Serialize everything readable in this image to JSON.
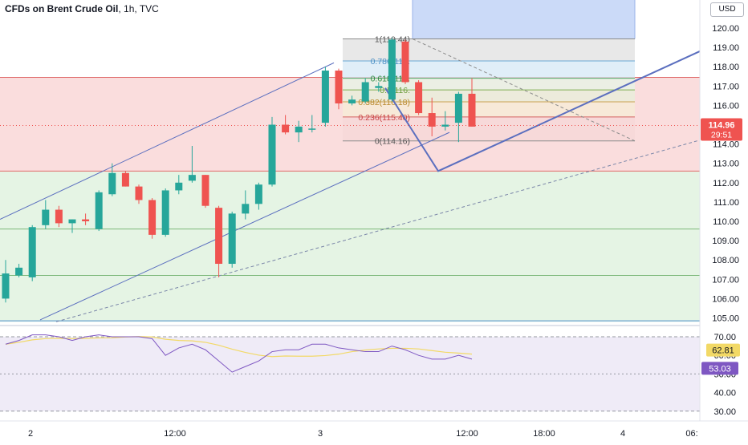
{
  "title": {
    "symbol": "CFDs on Brent Crude Oil",
    "interval": "1h",
    "source": "TVC"
  },
  "currency_button": "USD",
  "price_badge": {
    "price": "114.96",
    "countdown": "29:51"
  },
  "rsi_badges": {
    "ma": "62.81",
    "rsi": "53.03"
  },
  "colors": {
    "up": "#26a69a",
    "down": "#ef5350",
    "fib_line": "#9598a1",
    "trend": "#5b6fbf",
    "rsi": "#7e57c2",
    "rsi_ma": "#f2d966"
  },
  "price_axis_ticks": [
    "120.00",
    "119.00",
    "118.00",
    "117.00",
    "116.00",
    "115.00",
    "114.00",
    "113.00",
    "112.00",
    "111.00",
    "110.00",
    "109.00",
    "108.00",
    "107.00",
    "106.00",
    "105.00"
  ],
  "rsi_axis_ticks": [
    "70.00",
    "60.00",
    "50.00",
    "40.00",
    "30.00"
  ],
  "time_axis_ticks": [
    "2",
    "12:00",
    "3",
    "12:00",
    "18:00",
    "4",
    "06:"
  ],
  "fib_levels": [
    {
      "label": "1(119.44)",
      "value": 119.44
    },
    {
      "label": "0.786(118.",
      "value": 118.3
    },
    {
      "label": "0.618(117.",
      "value": 117.4
    },
    {
      "label": "0.5(116.",
      "value": 116.8
    },
    {
      "label": "0.382(116.18)",
      "value": 116.18
    },
    {
      "label": "0.236(115.40)",
      "value": 115.4
    },
    {
      "label": "0(114.16)",
      "value": 114.16
    }
  ],
  "chart_data": {
    "type": "candlestick",
    "title": "CFDs on Brent Crude Oil, 1h, TVC",
    "ylim": [
      104.5,
      121
    ],
    "y_axis_side": "right",
    "candles": [
      {
        "o": 106.0,
        "h": 108.0,
        "l": 105.8,
        "c": 107.3
      },
      {
        "o": 107.2,
        "h": 107.8,
        "l": 107.1,
        "c": 107.6
      },
      {
        "o": 107.1,
        "h": 109.8,
        "l": 106.9,
        "c": 109.7
      },
      {
        "o": 109.8,
        "h": 111.1,
        "l": 109.6,
        "c": 110.6
      },
      {
        "o": 110.6,
        "h": 110.8,
        "l": 109.7,
        "c": 109.9
      },
      {
        "o": 109.9,
        "h": 110.1,
        "l": 109.4,
        "c": 110.1
      },
      {
        "o": 110.1,
        "h": 110.4,
        "l": 109.8,
        "c": 110.0
      },
      {
        "o": 109.6,
        "h": 111.6,
        "l": 109.5,
        "c": 111.5
      },
      {
        "o": 111.4,
        "h": 113.0,
        "l": 111.3,
        "c": 112.5
      },
      {
        "o": 112.5,
        "h": 112.6,
        "l": 111.8,
        "c": 111.8
      },
      {
        "o": 111.8,
        "h": 111.9,
        "l": 110.9,
        "c": 111.1
      },
      {
        "o": 111.1,
        "h": 111.2,
        "l": 109.1,
        "c": 109.3
      },
      {
        "o": 109.3,
        "h": 111.7,
        "l": 109.2,
        "c": 111.6
      },
      {
        "o": 111.6,
        "h": 112.4,
        "l": 111.4,
        "c": 112.0
      },
      {
        "o": 112.1,
        "h": 113.9,
        "l": 112.0,
        "c": 112.4
      },
      {
        "o": 112.4,
        "h": 112.4,
        "l": 110.7,
        "c": 110.8
      },
      {
        "o": 110.7,
        "h": 110.8,
        "l": 107.1,
        "c": 107.8
      },
      {
        "o": 107.8,
        "h": 110.5,
        "l": 107.6,
        "c": 110.4
      },
      {
        "o": 110.4,
        "h": 111.6,
        "l": 110.1,
        "c": 110.9
      },
      {
        "o": 110.9,
        "h": 112.0,
        "l": 110.6,
        "c": 111.9
      },
      {
        "o": 111.9,
        "h": 115.4,
        "l": 111.8,
        "c": 115.0
      },
      {
        "o": 115.0,
        "h": 115.5,
        "l": 114.5,
        "c": 114.6
      },
      {
        "o": 114.6,
        "h": 115.2,
        "l": 114.1,
        "c": 114.9
      },
      {
        "o": 114.8,
        "h": 115.5,
        "l": 114.6,
        "c": 114.8
      },
      {
        "o": 115.1,
        "h": 118.0,
        "l": 114.9,
        "c": 117.8
      },
      {
        "o": 117.8,
        "h": 117.9,
        "l": 115.8,
        "c": 116.1
      },
      {
        "o": 116.1,
        "h": 116.5,
        "l": 116.0,
        "c": 116.3
      },
      {
        "o": 116.2,
        "h": 117.4,
        "l": 116.1,
        "c": 117.2
      },
      {
        "o": 116.9,
        "h": 117.2,
        "l": 116.7,
        "c": 117.0
      },
      {
        "o": 116.3,
        "h": 119.5,
        "l": 116.2,
        "c": 119.4
      },
      {
        "o": 119.3,
        "h": 119.4,
        "l": 117.1,
        "c": 117.2
      },
      {
        "o": 117.2,
        "h": 117.3,
        "l": 115.5,
        "c": 115.6
      },
      {
        "o": 115.6,
        "h": 116.4,
        "l": 114.4,
        "c": 114.9
      },
      {
        "o": 114.9,
        "h": 115.7,
        "l": 114.7,
        "c": 115.0
      },
      {
        "o": 115.1,
        "h": 116.7,
        "l": 114.1,
        "c": 116.6
      },
      {
        "o": 116.6,
        "h": 117.4,
        "l": 114.9,
        "c": 114.9
      }
    ],
    "rsi": [
      66,
      68,
      71,
      71,
      70,
      68,
      70,
      71,
      70,
      70,
      70,
      69,
      60,
      64,
      66,
      63,
      57,
      51,
      54,
      57,
      62,
      63,
      63,
      66,
      66,
      64,
      63,
      62,
      62,
      65,
      63,
      60,
      58,
      58,
      60,
      58
    ],
    "rsi_values": {
      "rsi": 53.03,
      "ma": 62.81
    },
    "rsi_ylim": [
      20,
      75
    ]
  }
}
